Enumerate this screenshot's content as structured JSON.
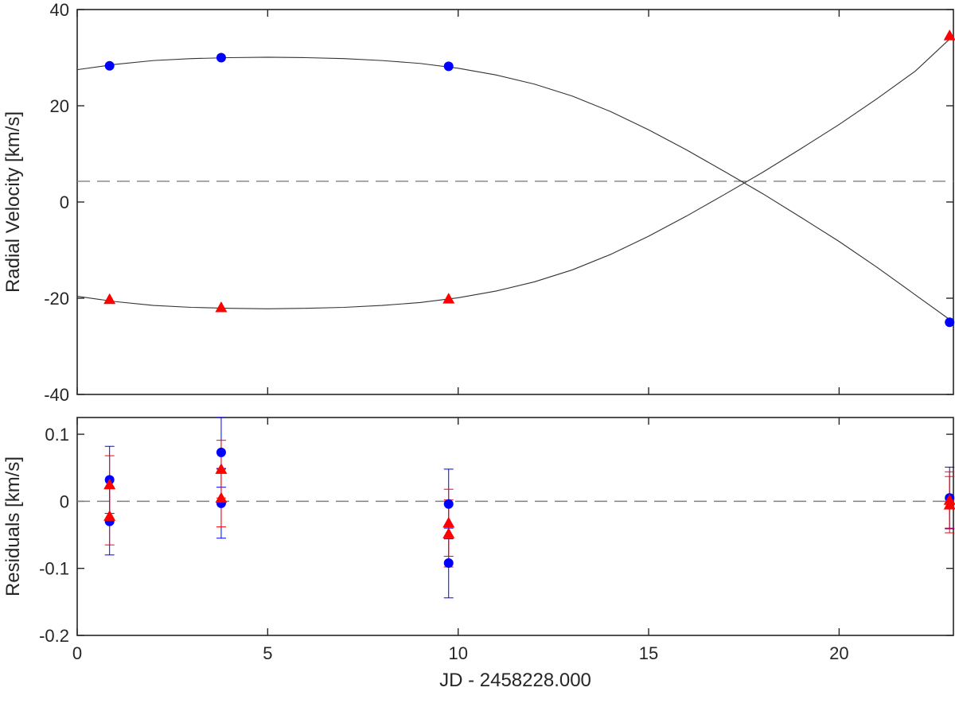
{
  "chart_data": [
    {
      "type": "scatter",
      "panel": "radial-velocity",
      "title": "",
      "xlabel": "",
      "ylabel": "Radial Velocity [km/s]",
      "xlim": [
        0,
        23
      ],
      "ylim": [
        -40,
        40
      ],
      "yticks": [
        "-40",
        "-20",
        "0",
        "20",
        "40"
      ],
      "xticks": [
        "0",
        "5",
        "10",
        "15",
        "20"
      ],
      "show_x_tick_labels": false,
      "grid": false,
      "reference_line": {
        "y": 4.3,
        "style": "dashed",
        "color": "#808080"
      },
      "series": [
        {
          "marker": "circle",
          "color": "#0000ff",
          "x": [
            0.85,
            3.78,
            9.75,
            22.9
          ],
          "y": [
            28.3,
            30.0,
            28.2,
            -25.0
          ],
          "fit_curve": {
            "color": "#333333",
            "x": [
              0,
              1,
              2,
              3,
              4,
              5,
              6,
              7,
              8,
              9,
              10,
              11,
              12,
              13,
              14,
              15,
              16,
              17,
              18,
              19,
              20,
              21,
              22,
              23
            ],
            "y": [
              27.5,
              28.6,
              29.4,
              29.8,
              30.0,
              30.1,
              30.0,
              29.8,
              29.4,
              28.8,
              27.8,
              26.4,
              24.5,
              22.0,
              18.8,
              15.0,
              10.8,
              6.3,
              1.7,
              -3.2,
              -8.2,
              -13.6,
              -19.3,
              -25.0
            ]
          }
        },
        {
          "marker": "triangle",
          "color": "#ff0000",
          "x": [
            0.85,
            3.78,
            9.75,
            22.9
          ],
          "y": [
            -20.2,
            -21.9,
            -20.1,
            34.6
          ],
          "fit_curve": {
            "color": "#333333",
            "x": [
              0,
              1,
              2,
              3,
              4,
              5,
              6,
              7,
              8,
              9,
              10,
              11,
              12,
              13,
              14,
              15,
              16,
              17,
              18,
              19,
              20,
              21,
              22,
              23
            ],
            "y": [
              -19.6,
              -20.7,
              -21.5,
              -21.9,
              -22.1,
              -22.2,
              -22.1,
              -21.9,
              -21.5,
              -20.9,
              -19.9,
              -18.5,
              -16.6,
              -14.1,
              -10.9,
              -7.1,
              -2.9,
              1.6,
              6.2,
              11.1,
              16.1,
              21.5,
              27.2,
              34.6
            ]
          }
        }
      ]
    },
    {
      "type": "scatter",
      "panel": "residuals",
      "title": "",
      "xlabel": "JD - 2458228.000",
      "ylabel": "Residuals [km/s]",
      "xlim": [
        0,
        23
      ],
      "ylim": [
        -0.2,
        0.125
      ],
      "yticks": [
        "-0.2",
        "-0.1",
        "0",
        "0.1"
      ],
      "xticks": [
        "0",
        "5",
        "10",
        "15",
        "20"
      ],
      "grid": false,
      "reference_line": {
        "y": 0,
        "style": "dashed",
        "color": "#808080"
      },
      "series": [
        {
          "marker": "circle",
          "color": "#0000ff",
          "x": [
            0.85,
            0.85,
            3.78,
            3.78,
            9.75,
            9.75,
            22.9
          ],
          "y": [
            0.032,
            -0.03,
            0.073,
            -0.003,
            -0.004,
            -0.092,
            0.005
          ],
          "yerr": [
            0.05,
            0.05,
            0.052,
            0.052,
            0.052,
            0.052,
            0.046
          ]
        },
        {
          "marker": "triangle",
          "color": "#ff0000",
          "x": [
            0.85,
            0.85,
            3.78,
            3.78,
            9.75,
            9.75,
            22.9,
            22.9
          ],
          "y": [
            0.025,
            -0.022,
            0.048,
            0.005,
            -0.032,
            -0.048,
            0.002,
            -0.005
          ],
          "yerr": [
            0.043,
            0.043,
            0.043,
            0.043,
            0.05,
            0.05,
            0.042,
            0.042
          ]
        }
      ]
    }
  ]
}
